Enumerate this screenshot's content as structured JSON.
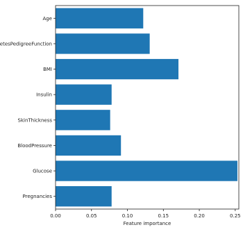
{
  "chart_data": {
    "type": "bar",
    "orientation": "horizontal",
    "categories": [
      "Age",
      "etesPedigreeFunction",
      "BMI",
      "Insulin",
      "SkinThickness",
      "BloodPressure",
      "Glucose",
      "Pregnancies"
    ],
    "values": [
      0.122,
      0.131,
      0.171,
      0.078,
      0.076,
      0.091,
      0.253,
      0.078
    ],
    "xlabel": "Feature importance",
    "ylabel": "",
    "xlim": [
      0.0,
      0.255
    ],
    "xticks": [
      "0.00",
      "0.05",
      "0.10",
      "0.15",
      "0.20",
      "0.25"
    ],
    "grid": false,
    "bar_color": "#1f77b4"
  }
}
